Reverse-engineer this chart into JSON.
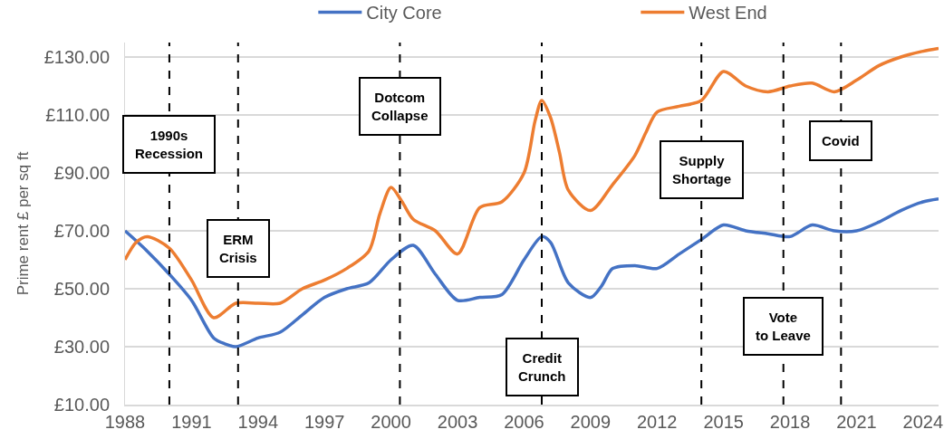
{
  "chart_data": {
    "type": "line",
    "ylabel": "Prime rent £ per sq ft",
    "xlim": [
      1988,
      2024.7
    ],
    "xticks": [
      1988,
      1991,
      1994,
      1997,
      2000,
      2003,
      2006,
      2009,
      2012,
      2015,
      2018,
      2021,
      2024
    ],
    "ylim": [
      10,
      135
    ],
    "yticks": [
      {
        "value": 10,
        "label": "£10.00"
      },
      {
        "value": 30,
        "label": "£30.00"
      },
      {
        "value": 50,
        "label": "£50.00"
      },
      {
        "value": 70,
        "label": "£70.00"
      },
      {
        "value": 90,
        "label": "£90.00"
      },
      {
        "value": 110,
        "label": "£110.00"
      },
      {
        "value": 130,
        "label": "£130.00"
      }
    ],
    "grid": "y",
    "legend": "top",
    "marker": "none",
    "line_style": "solid",
    "series": [
      {
        "name": "City Core",
        "color": "#4472c4",
        "x": [
          1988,
          1989,
          1990,
          1991,
          1992,
          1992.5,
          1993,
          1994,
          1995,
          1996,
          1997,
          1998,
          1999,
          2000,
          2001,
          2002,
          2003,
          2004,
          2005,
          2006,
          2006.8,
          2007.2,
          2008,
          2009,
          2009.5,
          2010,
          2011,
          2012,
          2013,
          2014,
          2015,
          2016,
          2017,
          2018,
          2019,
          2020,
          2021,
          2022,
          2023,
          2024,
          2024.7
        ],
        "values": [
          70,
          63,
          55,
          46,
          33,
          31,
          30,
          33,
          35,
          41,
          47,
          50,
          52,
          60,
          65,
          55,
          46,
          47,
          48,
          60,
          68,
          66,
          52,
          47,
          51,
          57,
          58,
          57,
          62,
          67,
          72,
          70,
          69,
          68,
          72,
          70,
          70,
          73,
          77,
          80,
          81
        ]
      },
      {
        "name": "West End",
        "color": "#ed7d31",
        "x": [
          1988,
          1988.5,
          1989,
          1990,
          1991,
          1992,
          1993,
          1994,
          1995,
          1996,
          1997,
          1998,
          1999,
          1999.5,
          2000,
          2000.5,
          2001,
          2002,
          2003,
          2004,
          2005,
          2006,
          2006.5,
          2006.8,
          2007.2,
          2007.6,
          2008,
          2009,
          2010,
          2011,
          2011.5,
          2012,
          2013,
          2014,
          2015,
          2016,
          2017,
          2018,
          2019,
          2020,
          2021,
          2022,
          2023,
          2024,
          2024.7
        ],
        "values": [
          60,
          66,
          68,
          64,
          53,
          40,
          45,
          45,
          45,
          50,
          53,
          57,
          63,
          76,
          85,
          80,
          74,
          70,
          62,
          78,
          80,
          90,
          108,
          115,
          109,
          97,
          84,
          77,
          86,
          96,
          104,
          111,
          113,
          115,
          125,
          120,
          118,
          120,
          121,
          118,
          122,
          127,
          130,
          132,
          133
        ]
      }
    ],
    "ref_lines": [
      {
        "axis": "x",
        "value": 1990,
        "color": "#000000",
        "line_style": "dashed"
      },
      {
        "axis": "x",
        "value": 1993.1,
        "color": "#000000",
        "line_style": "dashed"
      },
      {
        "axis": "x",
        "value": 2000.4,
        "color": "#000000",
        "line_style": "dashed"
      },
      {
        "axis": "x",
        "value": 2006.8,
        "color": "#000000",
        "line_style": "dashed"
      },
      {
        "axis": "x",
        "value": 2014,
        "color": "#000000",
        "line_style": "dashed"
      },
      {
        "axis": "x",
        "value": 2017.7,
        "color": "#000000",
        "line_style": "dashed"
      },
      {
        "axis": "x",
        "value": 2020.3,
        "color": "#000000",
        "line_style": "dashed"
      }
    ],
    "annotations": [
      {
        "text": "1990s\nRecession",
        "x": 1990,
        "y": 100
      },
      {
        "text": "ERM\nCrisis",
        "x": 1993.1,
        "y": 64
      },
      {
        "text": "Dotcom\nCollapse",
        "x": 2000.4,
        "y": 113
      },
      {
        "text": "Credit\nCrunch",
        "x": 2006.8,
        "y": 23
      },
      {
        "text": "Supply\nShortage",
        "x": 2014,
        "y": 91
      },
      {
        "text": "Vote\nto Leave",
        "x": 2017.7,
        "y": 37
      },
      {
        "text": "Covid",
        "x": 2020.3,
        "y": 101
      }
    ]
  }
}
